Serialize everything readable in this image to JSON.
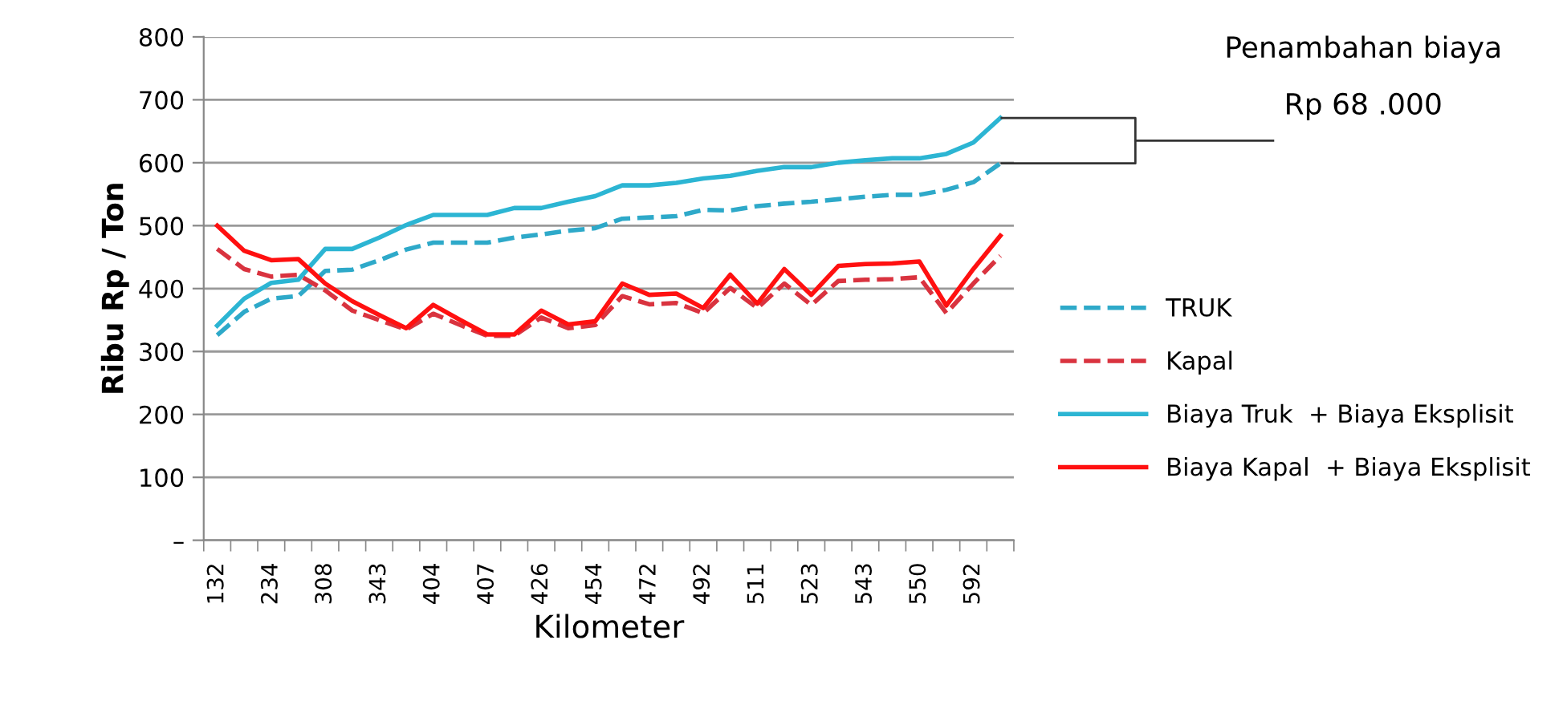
{
  "chart_data": {
    "type": "line",
    "ylabel": "Ribu Rp / Ton",
    "xlabel": "Kilometer",
    "categories": [
      "132",
      null,
      "234",
      null,
      "308",
      null,
      "343",
      null,
      "404",
      null,
      "407",
      null,
      "426",
      null,
      "454",
      null,
      "472",
      null,
      "492",
      null,
      "511",
      null,
      "523",
      null,
      "543",
      null,
      "550",
      null,
      "592",
      null
    ],
    "series": [
      {
        "name": "TRUK",
        "color": "#2ea9c9",
        "line_style": "dashed",
        "values": [
          326,
          363,
          384,
          388,
          428,
          430,
          445,
          462,
          473,
          473,
          473,
          481,
          486,
          492,
          496,
          511,
          513,
          515,
          525,
          524,
          531,
          535,
          538,
          542,
          546,
          549,
          549,
          557,
          569,
          599
        ]
      },
      {
        "name": "Kapal",
        "color": "#d9333f",
        "line_style": "dashed",
        "values": [
          463,
          431,
          419,
          422,
          397,
          365,
          350,
          335,
          360,
          342,
          325,
          325,
          354,
          337,
          342,
          388,
          375,
          377,
          361,
          401,
          369,
          408,
          374,
          412,
          414,
          415,
          418,
          361,
          408,
          452
        ]
      },
      {
        "name": "Biaya Truk  + Biaya Eksplisit",
        "color": "#2cb5d3",
        "line_style": "solid",
        "values": [
          341,
          384,
          409,
          414,
          463,
          463,
          481,
          501,
          517,
          517,
          517,
          528,
          528,
          538,
          547,
          564,
          564,
          568,
          575,
          579,
          587,
          593,
          593,
          600,
          604,
          607,
          607,
          614,
          632,
          671
        ]
      },
      {
        "name": "Biaya Kapal  + Biaya Eksplisit",
        "color": "#ff1010",
        "line_style": "solid",
        "values": [
          500,
          460,
          445,
          447,
          408,
          380,
          358,
          337,
          374,
          350,
          327,
          327,
          365,
          343,
          348,
          408,
          390,
          392,
          369,
          422,
          376,
          431,
          390,
          436,
          439,
          440,
          443,
          373,
          431,
          484
        ]
      }
    ],
    "ylim": [
      0,
      800
    ],
    "yticks": [
      {
        "value": 0,
        "label": "–"
      },
      100,
      200,
      300,
      400,
      500,
      600,
      700,
      800
    ],
    "grid": "y",
    "legend": "right",
    "marker": "none",
    "annotations": [
      "Penambahan biaya",
      "Rp 68 .000"
    ]
  }
}
